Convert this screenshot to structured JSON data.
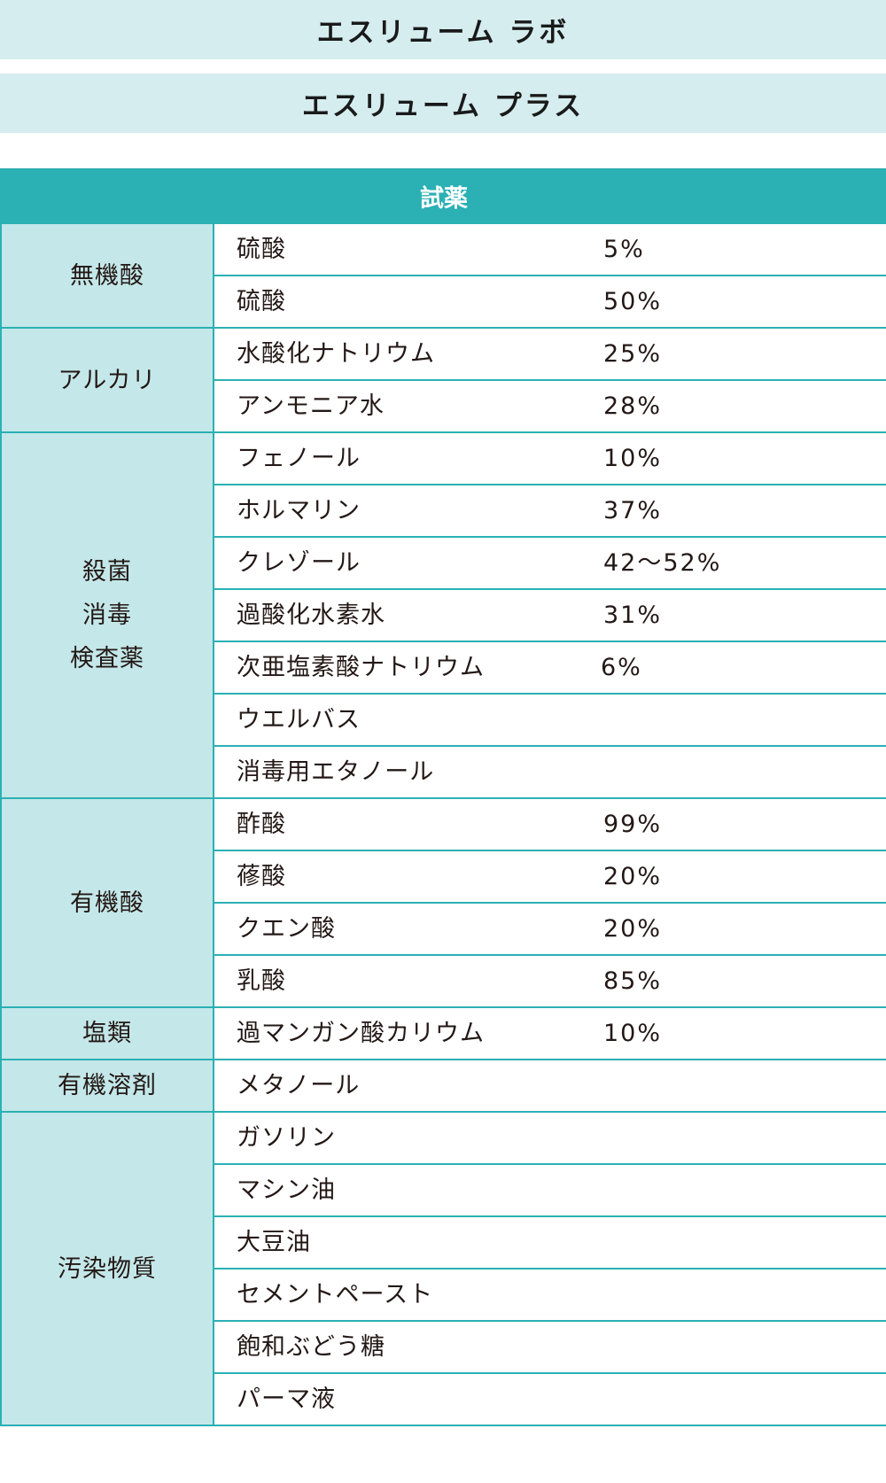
{
  "banners": {
    "lab": "エスリューム ラボ",
    "plus": "エスリューム プラス"
  },
  "table": {
    "header": "試薬",
    "groups": [
      {
        "category": [
          "無機酸"
        ],
        "rows": [
          {
            "name": "硫酸",
            "concentration": "5%"
          },
          {
            "name": "硫酸",
            "concentration": "50%"
          }
        ]
      },
      {
        "category": [
          "アルカリ"
        ],
        "rows": [
          {
            "name": "水酸化ナトリウム",
            "concentration": "25%"
          },
          {
            "name": "アンモニア水",
            "concentration": "28%"
          }
        ]
      },
      {
        "category": [
          "殺菌",
          "消毒",
          "検査薬"
        ],
        "rows": [
          {
            "name": "フェノール",
            "concentration": "10%"
          },
          {
            "name": "ホルマリン",
            "concentration": "37%"
          },
          {
            "name": "クレゾール",
            "concentration": "42～52%"
          },
          {
            "name": "過酸化水素水",
            "concentration": "31%"
          },
          {
            "name": "次亜塩素酸ナトリウム",
            "concentration": "6%"
          },
          {
            "name": "ウエルバス",
            "concentration": ""
          },
          {
            "name": "消毒用エタノール",
            "concentration": ""
          }
        ]
      },
      {
        "category": [
          "有機酸"
        ],
        "rows": [
          {
            "name": "酢酸",
            "concentration": "99%"
          },
          {
            "name": "蓚酸",
            "concentration": "20%"
          },
          {
            "name": "クエン酸",
            "concentration": "20%"
          },
          {
            "name": "乳酸",
            "concentration": "85%"
          }
        ]
      },
      {
        "category": [
          "塩類"
        ],
        "rows": [
          {
            "name": "過マンガン酸カリウム",
            "concentration": "10%"
          }
        ]
      },
      {
        "category": [
          "有機溶剤"
        ],
        "rows": [
          {
            "name": "メタノール",
            "concentration": ""
          }
        ]
      },
      {
        "category": [
          "汚染物質"
        ],
        "rows": [
          {
            "name": "ガソリン",
            "concentration": ""
          },
          {
            "name": "マシン油",
            "concentration": ""
          },
          {
            "name": "大豆油",
            "concentration": ""
          },
          {
            "name": "セメントペースト",
            "concentration": ""
          },
          {
            "name": "飽和ぶどう糖",
            "concentration": ""
          },
          {
            "name": "パーマ液",
            "concentration": ""
          }
        ]
      }
    ]
  }
}
